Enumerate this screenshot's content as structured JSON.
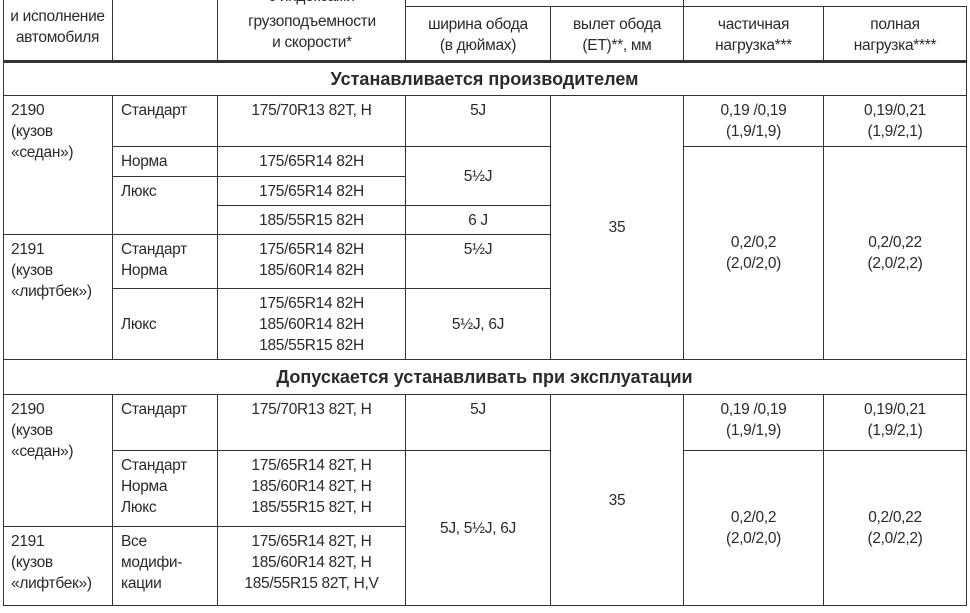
{
  "header": {
    "col1": "и исполнение\nавтомобиля",
    "col3_cut": "с индексами",
    "col3": "грузоподъемности\nи скорости*",
    "col4": "ширина обода\n(в дюймах)",
    "col5": "вылет обода\n(ET)**, мм",
    "col6": "частичная\nнагрузка***",
    "col7": "полная\nнагрузка****"
  },
  "section1": {
    "title": "Устанавливается производителем",
    "model_2190": "2190\n(кузов\n«седан»)",
    "model_2191": "2191\n(кузов\n«лифтбек»)",
    "trims": [
      "Стандарт",
      "Норма",
      "Люкс",
      "Стандарт\nНорма",
      "Люкс"
    ],
    "tires": [
      "175/70R13 82T, H",
      "175/65R14 82H",
      "175/65R14 82H",
      "185/55R15 82H",
      "175/65R14 82H\n185/60R14 82H",
      "175/65R14 82H\n185/60R14 82H\n185/55R15 82H"
    ],
    "rims": [
      "5J",
      "5½J",
      "6 J",
      "5½J",
      "5½J, 6J"
    ],
    "offset": "35",
    "partial": [
      "0,19 /0,19\n(1,9/1,9)",
      "0,2/0,2\n(2,0/2,0)"
    ],
    "full": [
      "0,19/0,21\n(1,9/2,1)",
      "0,2/0,22\n(2,0/2,2)"
    ]
  },
  "section2": {
    "title": "Допускается устанавливать при эксплуатации",
    "model_2190": "2190\n(кузов\n«седан»)",
    "model_2191": "2191\n(кузов\n«лифтбек»)",
    "trims": [
      "Стандарт",
      "Стандарт\nНорма\nЛюкс",
      "Все\nмодифи-\nкации"
    ],
    "tires": [
      "175/70R13 82T, H",
      "175/65R14 82T, H\n185/60R14 82T, H\n185/55R15 82T, H",
      "175/65R14 82T, H\n185/60R14 82T, H\n185/55R15 82T, H,V"
    ],
    "rims": [
      "5J",
      "5J, 5½J, 6J"
    ],
    "offset": "35",
    "partial": [
      "0,19 /0,19\n(1,9/1,9)",
      "0,2/0,2\n(2,0/2,0)"
    ],
    "full": [
      "0,19/0,21\n(1,9/2,1)",
      "0,2/0,22\n(2,0/2,2)"
    ]
  }
}
